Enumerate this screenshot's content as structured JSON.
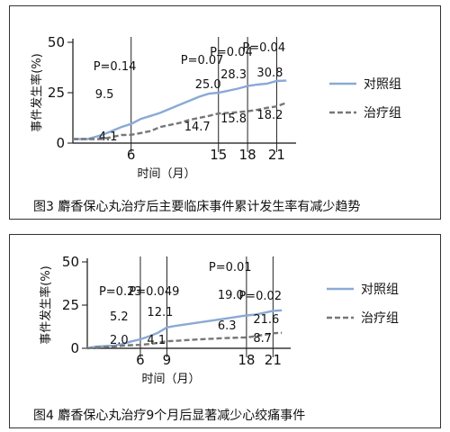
{
  "chart_data": [
    {
      "type": "line",
      "ylabel": "事件发生率(%)",
      "xlabel": "时间（月）",
      "xticks": [
        6,
        15,
        18,
        21
      ],
      "yticks": [
        0,
        25,
        50
      ],
      "ylim": [
        0,
        50
      ],
      "xlim": [
        0,
        23
      ],
      "caption": "图3  麝香保心丸治疗后主要临床事件累计发生率有减少趋势",
      "legend": {
        "placement": "right",
        "entries": [
          "对照组",
          "治疗组"
        ]
      },
      "series": [
        {
          "name": "对照组",
          "color": "#8aa9d6",
          "style": "solid",
          "x": [
            0,
            1.5,
            3,
            4,
            5,
            6,
            7,
            8,
            9,
            10,
            11,
            12,
            13,
            14,
            15,
            16,
            17,
            18,
            19,
            20,
            21,
            22
          ],
          "y": [
            2,
            2,
            4,
            6,
            8,
            9.5,
            12,
            13.5,
            15,
            17,
            19,
            21,
            23,
            24.5,
            25,
            26,
            27,
            28.3,
            29,
            29.5,
            30.8,
            31
          ]
        },
        {
          "name": "治疗组",
          "color": "#777777",
          "style": "dashed",
          "x": [
            0,
            1.5,
            3,
            4,
            5,
            6,
            7,
            8,
            9,
            10,
            11,
            12,
            13,
            14,
            15,
            16,
            17,
            18,
            19,
            20,
            21,
            22
          ],
          "y": [
            2,
            2,
            2,
            3,
            4,
            4.1,
            5,
            6,
            8,
            9,
            10,
            11.5,
            12.5,
            13.5,
            14.7,
            15,
            15.3,
            15.8,
            16.5,
            17.5,
            18.2,
            20
          ]
        }
      ],
      "annotations": [
        {
          "x": 6,
          "p": "P=0.14",
          "upper": "9.5",
          "lower": "4.1"
        },
        {
          "x": 15,
          "p": "P=0.07",
          "upper": "25.0",
          "lower": "14.7"
        },
        {
          "x": 18,
          "p": "P=0.04",
          "upper": "28.3",
          "lower": "15.8"
        },
        {
          "x": 21,
          "p": "P=0.04",
          "upper": "30.8",
          "lower": "18.2"
        }
      ]
    },
    {
      "type": "line",
      "ylabel": "事件发生率(%)",
      "xlabel": "时间（月）",
      "xticks": [
        6,
        9,
        18,
        21
      ],
      "yticks": [
        0,
        25,
        50
      ],
      "ylim": [
        0,
        50
      ],
      "xlim": [
        0,
        23
      ],
      "caption": "图4  麝香保心丸治疗9个月后显著减少心绞痛事件",
      "legend": {
        "placement": "right",
        "entries": [
          "对照组",
          "治疗组"
        ]
      },
      "series": [
        {
          "name": "对照组",
          "color": "#8aa9d6",
          "style": "solid",
          "x": [
            0,
            1,
            3,
            4,
            5,
            6,
            7,
            8,
            9,
            10,
            12,
            14,
            16,
            18,
            19,
            20,
            21,
            22
          ],
          "y": [
            0,
            1,
            1.5,
            2.5,
            4,
            5.2,
            7,
            9,
            12.1,
            13,
            14.5,
            16,
            17.5,
            19,
            19.5,
            20.5,
            21.6,
            22
          ]
        },
        {
          "name": "治疗组",
          "color": "#777777",
          "style": "dashed",
          "x": [
            0,
            1,
            3,
            4,
            5,
            6,
            7,
            8,
            9,
            10,
            12,
            14,
            16,
            18,
            19,
            20,
            21,
            22
          ],
          "y": [
            0,
            0.5,
            1,
            1.5,
            1.8,
            2,
            2.5,
            3.2,
            4.1,
            4.3,
            5,
            5.5,
            6,
            6.3,
            7,
            7.8,
            8.7,
            9
          ]
        }
      ],
      "annotations": [
        {
          "x": 6,
          "p": "P=0.23",
          "upper": "5.2",
          "lower": "2.0"
        },
        {
          "x": 9,
          "p": "P=0.049",
          "upper": "12.1",
          "lower": "4.1"
        },
        {
          "x": 18,
          "p": "P=0.01",
          "upper": "19.0",
          "lower": "6.3"
        },
        {
          "x": 21,
          "p": "P=0.02",
          "upper": "21.6",
          "lower": "8.7"
        }
      ]
    }
  ]
}
